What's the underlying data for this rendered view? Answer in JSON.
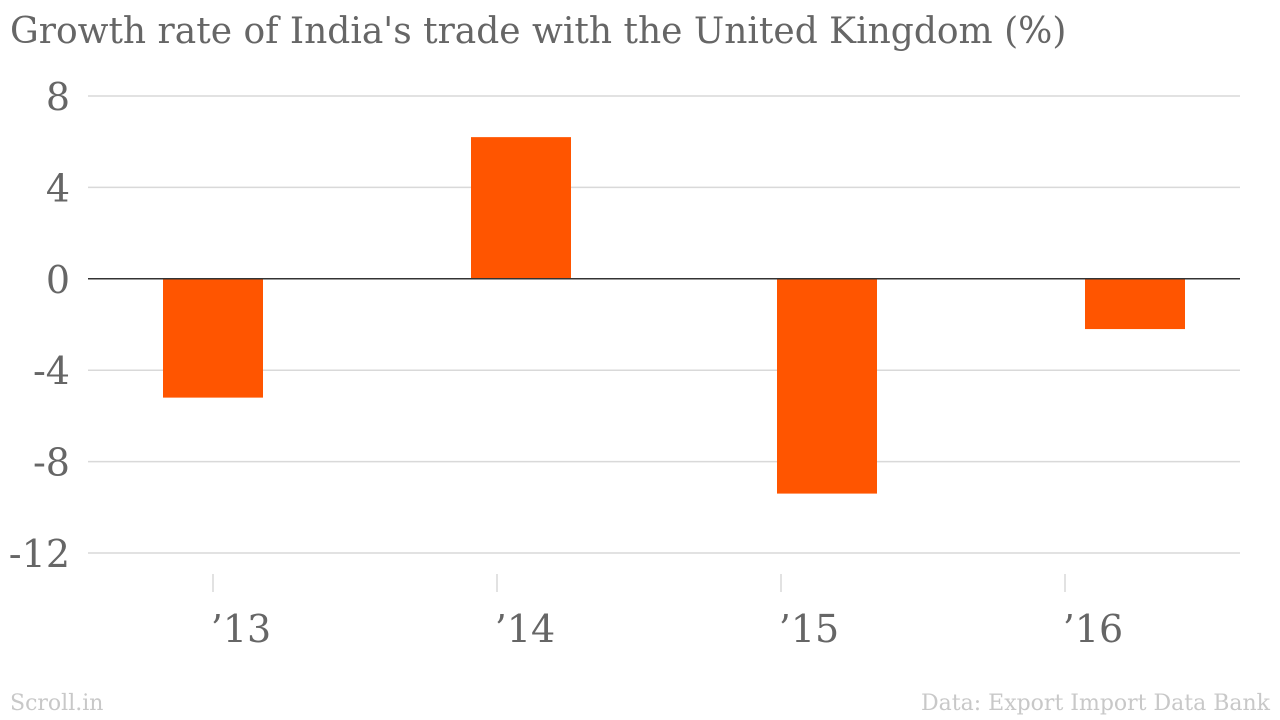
{
  "title": "Growth rate of India's trade with the United Kingdom (%)",
  "footer": {
    "source_brand": "Scroll.in",
    "source_note": "Data: Export Import Data Bank"
  },
  "colors": {
    "bar": "#ff5500",
    "grid": "#d9d9d9",
    "zero_line": "#333333",
    "text": "#666666",
    "footer_text": "#c8c8c8"
  },
  "chart_data": {
    "type": "bar",
    "categories": [
      "’13",
      "’14",
      "’15",
      "’16"
    ],
    "values": [
      -5.2,
      6.2,
      -9.4,
      -2.2
    ],
    "title": "Growth rate of India's trade with the United Kingdom (%)",
    "xlabel": "",
    "ylabel": "",
    "ylim": [
      -12,
      8
    ],
    "yticks": [
      8,
      4,
      0,
      -4,
      -8,
      -12
    ],
    "grid": true,
    "legend": "none"
  }
}
